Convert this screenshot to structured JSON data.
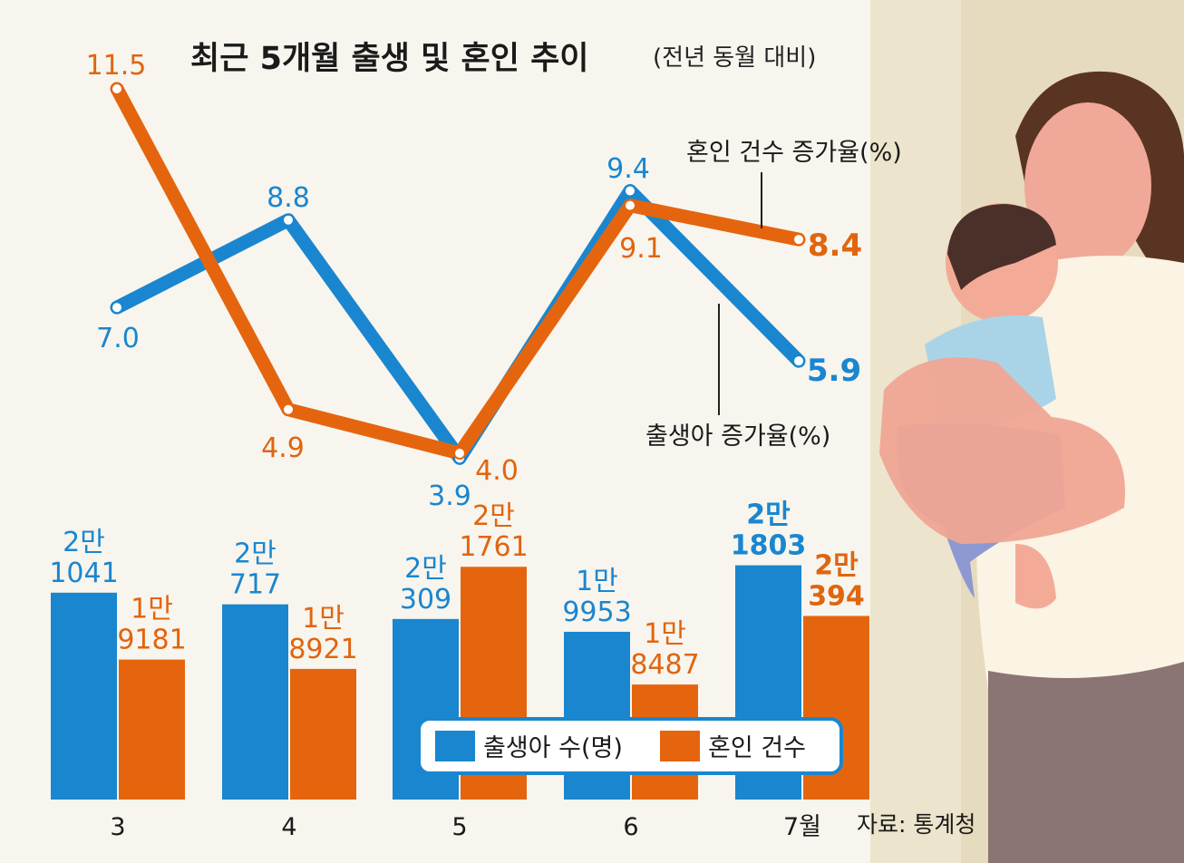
{
  "chart_data": {
    "type": "bar+line",
    "title": "최근 5개월 출생 및 혼인 추이",
    "subtitle": "(전년 동월 대비)",
    "categories": [
      "3",
      "4",
      "5",
      "6",
      "7월"
    ],
    "line_series": [
      {
        "name": "출생아 증가율(%)",
        "color": "#1a86cf",
        "values": [
          7.0,
          8.8,
          3.9,
          9.4,
          5.9
        ],
        "labels": [
          "7.0",
          "8.8",
          "3.9",
          "9.4",
          "5.9"
        ]
      },
      {
        "name": "혼인 건수 증가율(%)",
        "color": "#e5650e",
        "values": [
          11.5,
          4.9,
          4.0,
          9.1,
          8.4
        ],
        "labels": [
          "11.5",
          "4.9",
          "4.0",
          "9.1",
          "8.4"
        ]
      }
    ],
    "bar_series": [
      {
        "name": "출생아 수(명)",
        "color": "#1a86cf",
        "values": [
          21041,
          20717,
          20309,
          19953,
          21803
        ],
        "labels": [
          [
            "2만",
            "1041"
          ],
          [
            "2만",
            "717"
          ],
          [
            "2만",
            "309"
          ],
          [
            "1만",
            "9953"
          ],
          [
            "2만",
            "1803"
          ]
        ]
      },
      {
        "name": "혼인 건수",
        "color": "#e5650e",
        "values": [
          19181,
          18921,
          21761,
          18487,
          20394
        ],
        "labels": [
          [
            "1만",
            "9181"
          ],
          [
            "1만",
            "8921"
          ],
          [
            "2만",
            "1761"
          ],
          [
            "1만",
            "8487"
          ],
          [
            "2만",
            "394"
          ]
        ]
      }
    ],
    "source": "자료: 통계청"
  }
}
